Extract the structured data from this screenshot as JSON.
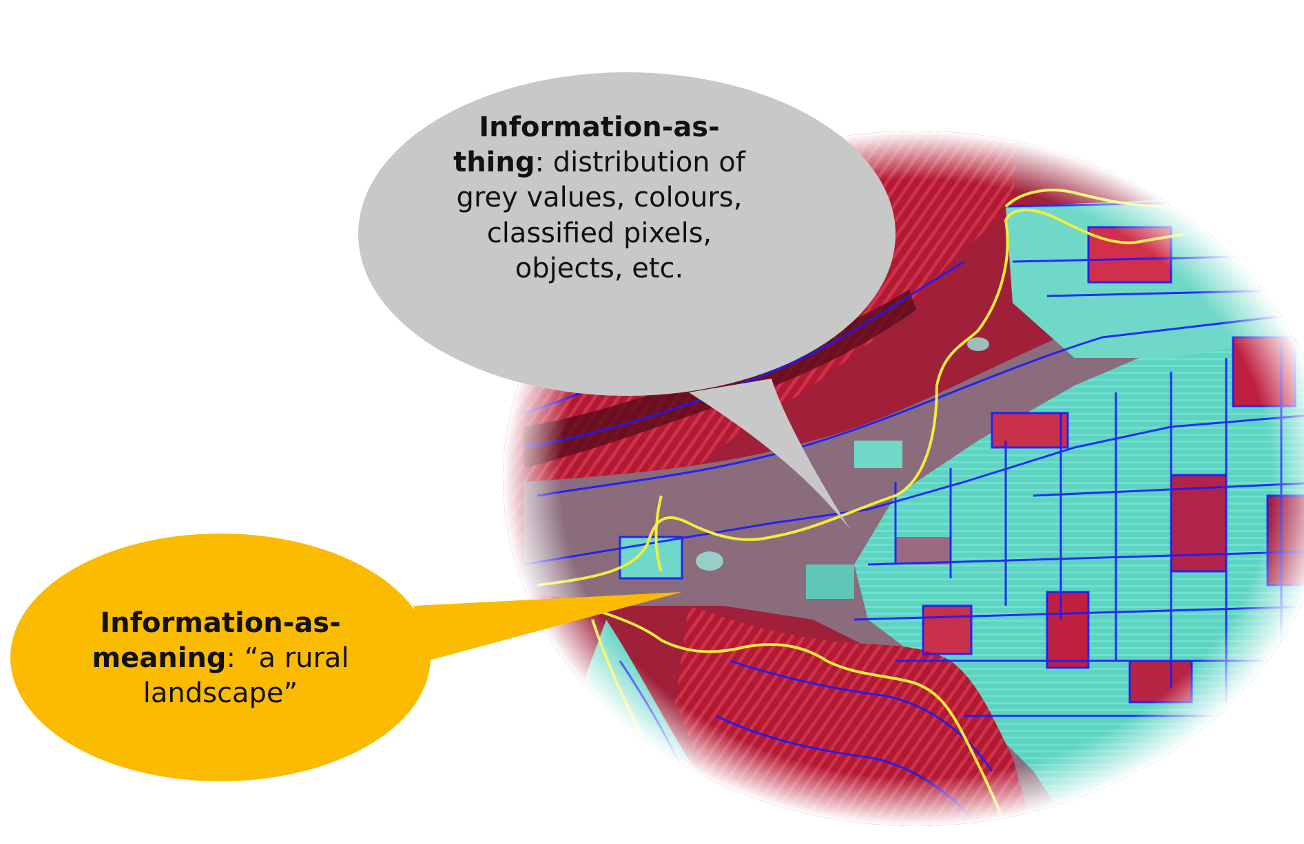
{
  "thing_bubble": {
    "term": "Information-as-thing",
    "term_line1": "Information-as-",
    "term_line2": "thing",
    "rest_line2": ": distribution of",
    "line3": "grey values, colours,",
    "line4": "classified pixels,",
    "line5": "objects, etc.",
    "fill_color": "#c8c8c8"
  },
  "meaning_bubble": {
    "term": "Information-as-meaning",
    "term_line1": "Information-as-",
    "term_line2": "meaning",
    "rest_line2": ": “a rural",
    "line3": "landscape”",
    "fill_color": "#fbbb00"
  },
  "image": {
    "content": "segmented false-colour satellite image of a rural landscape",
    "colors": {
      "vegetation": "#c8203a",
      "fields": "#5fd6c4",
      "segment_boundaries": "#1a1aff",
      "region_boundaries": "#f2ee3a"
    }
  }
}
